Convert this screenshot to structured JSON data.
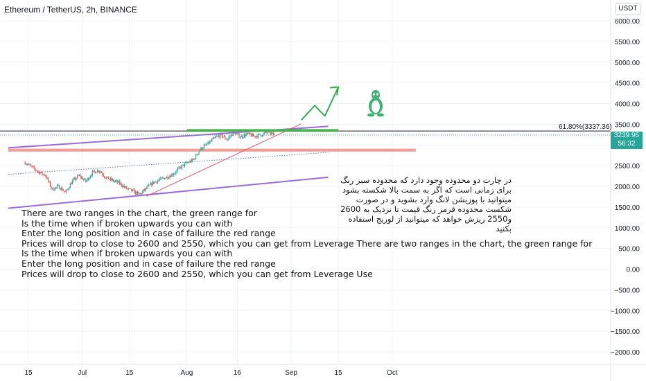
{
  "header": {
    "title": "Ethereum / TetherUS, 2h, BINANCE",
    "currency": "USDT"
  },
  "chart_data": {
    "type": "candlestick",
    "symbol": "ETHUSDT",
    "interval": "2h",
    "exchange": "BINANCE",
    "y_ticks": [
      "6000.00",
      "5500.00",
      "5000.00",
      "4500.00",
      "4000.00",
      "3500.00",
      "3000.00",
      "2500.00",
      "2000.00",
      "1500.00",
      "1000.00",
      "500.00",
      "0.00",
      "−500.00",
      "−1000.00",
      "−1500.00",
      "−2000.00"
    ],
    "y_tick_values": [
      6000,
      5500,
      5000,
      4500,
      4000,
      3500,
      3000,
      2500,
      2000,
      1500,
      1000,
      500,
      0,
      -500,
      -1000,
      -1500,
      -2000
    ],
    "x_ticks": [
      "15",
      "Jul",
      "15",
      "Aug",
      "16",
      "Sep",
      "15",
      "Oct"
    ],
    "ylim": [
      -2450,
      6280
    ],
    "price_series": {
      "x": [
        "Jun 14",
        "Jun 16",
        "Jun 18",
        "Jun 20",
        "Jun 22",
        "Jun 24",
        "Jun 26",
        "Jun 28",
        "Jun 30",
        "Jul 2",
        "Jul 4",
        "Jul 6",
        "Jul 8",
        "Jul 10",
        "Jul 12",
        "Jul 14",
        "Jul 16",
        "Jul 18",
        "Jul 20",
        "Jul 22",
        "Jul 24",
        "Jul 26",
        "Jul 28",
        "Jul 30",
        "Aug 1",
        "Aug 3",
        "Aug 5",
        "Aug 7",
        "Aug 9",
        "Aug 11",
        "Aug 13",
        "Aug 15",
        "Aug 17",
        "Aug 19",
        "Aug 21",
        "Aug 23",
        "Aug 25",
        "Aug 27"
      ],
      "close": [
        2580,
        2460,
        2350,
        2270,
        1930,
        2000,
        1850,
        2120,
        2260,
        2120,
        2330,
        2390,
        2210,
        2140,
        2080,
        1950,
        1880,
        1800,
        1950,
        2090,
        2160,
        2220,
        2300,
        2450,
        2560,
        2640,
        2900,
        3010,
        3150,
        3240,
        3130,
        3310,
        3200,
        3260,
        3210,
        3240,
        3310,
        3240
      ]
    },
    "fibonacci": {
      "label": "61.80%(3337.36)",
      "value": 3337.36
    },
    "current_price": {
      "value": "3239.96",
      "countdown": "56:32"
    },
    "green_range": {
      "from": "Aug 1",
      "to": "Sep 15",
      "value": 3350
    },
    "red_range": {
      "from": "Jun 9",
      "to": "Oct 8",
      "low": 2840,
      "high": 2910
    },
    "channel_upper": [
      [
        "Jun 9",
        2930
      ],
      [
        "Sep 12",
        3450
      ]
    ],
    "channel_lower": [
      [
        "Jun 9",
        1470
      ],
      [
        "Sep 12",
        2220
      ]
    ],
    "support_line": [
      [
        "Jul 20",
        1760
      ],
      [
        "Sep 4",
        3510
      ]
    ],
    "dotted_midline": [
      [
        "Jun 9",
        2290
      ],
      [
        "Sep 12",
        2820
      ]
    ],
    "projection_arrow": [
      [
        "Sep 4",
        3600
      ],
      [
        "Sep 8",
        3950
      ],
      [
        "Sep 11",
        3700
      ],
      [
        "Sep 15",
        4400
      ]
    ],
    "colors": {
      "up": "#26a69a",
      "down": "#ef5350",
      "green_range": "#4caf50",
      "red_range": "#f28b82",
      "channel": "#9c6ade",
      "support": "#e0566a",
      "midline": "#5b76d6",
      "arrow": "#2eb24c",
      "logo": "#3cb371"
    }
  },
  "annotations": {
    "english_text": "There are two ranges in the chart, the green range for\nIs the time when if broken upwards you can with\nEnter the long position and in case of failure the red range\nPrices will drop to close to 2600 and 2550, which you can get from Leverage There are two ranges in the chart, the green range for\nIs the time when if broken upwards you can with\nEnter the long position and in case of failure the red range\nPrices will drop to close to 2600 and 2550, which you can get from Leverage Use",
    "persian_text": "در چارت دو محدوده وجود دارد که محدوده سبز رنگ برای زمانی است که اگر به سمت بالا شکسته بشود میتوانید با پوزیشن لانگ وارد بشوید و در صورت شکست محدوده قرمز رنگ قیمت تا نزدیک به 2600 و2550 ریزش خواهد که میتوانید از لوریج استفاده بکنید",
    "logo_icon": "penguin-icon"
  }
}
